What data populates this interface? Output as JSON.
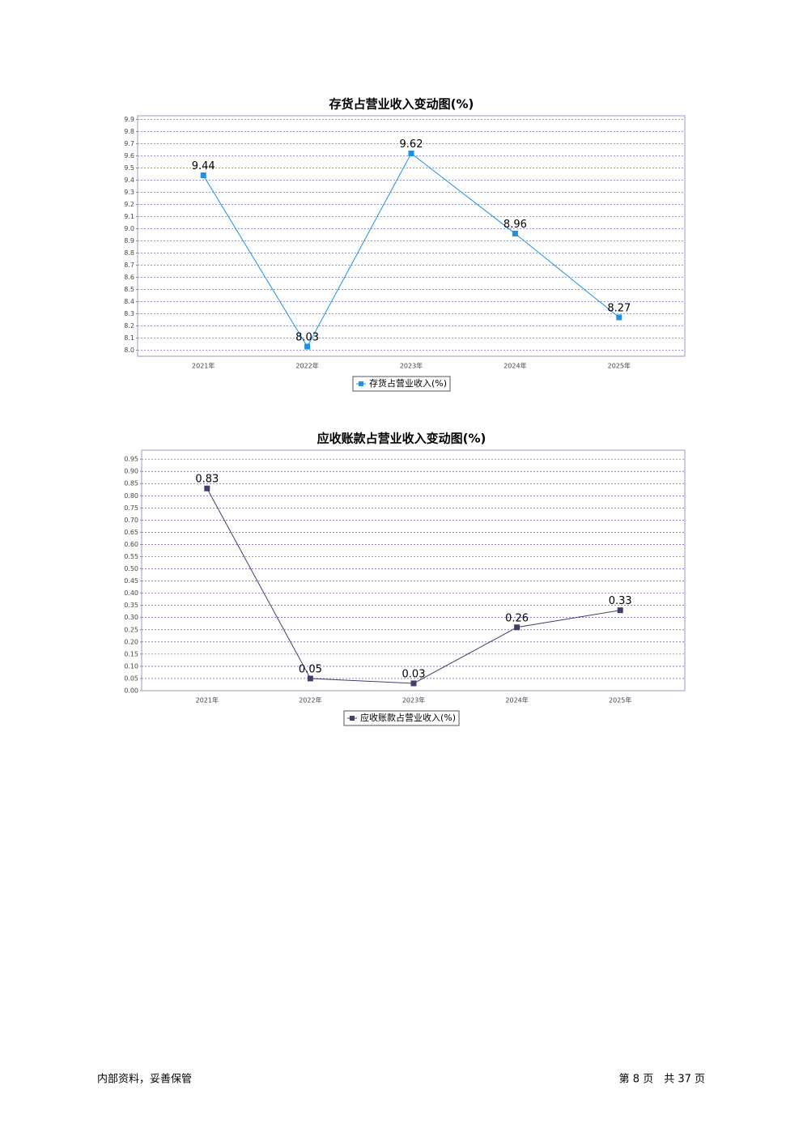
{
  "chart_data": [
    {
      "type": "line",
      "title": "存货占营业收入变动图(%)",
      "categories": [
        "2021年",
        "2022年",
        "2023年",
        "2024年",
        "2025年"
      ],
      "series": [
        {
          "name": "存货占营业收入(%)",
          "color": "#1e90e6",
          "values": [
            9.44,
            8.03,
            9.62,
            8.96,
            8.27
          ]
        }
      ],
      "ylim": [
        7.95,
        9.93
      ],
      "yticks": [
        {
          "value": 8,
          "label": "8.0"
        },
        8.1,
        8.2,
        8.3,
        8.4,
        8.5,
        8.6,
        8.7,
        8.8,
        8.9,
        {
          "value": 9,
          "label": "9.0"
        },
        9.1,
        9.2,
        9.3,
        9.4,
        9.5,
        9.6,
        9.7,
        9.8,
        9.9
      ],
      "grid": true
    },
    {
      "type": "line",
      "title": "应收账款占营业收入变动图(%)",
      "categories": [
        "2021年",
        "2022年",
        "2023年",
        "2024年",
        "2025年"
      ],
      "series": [
        {
          "name": "应收账款占营业收入(%)",
          "color": "#3f3f6a",
          "values": [
            0.83,
            0.05,
            0.03,
            0.26,
            0.33
          ]
        }
      ],
      "ylim": [
        0,
        0.987
      ],
      "yticks": [
        {
          "value": 0,
          "label": "0.00"
        },
        0.05,
        {
          "value": 0.1,
          "label": "0.10"
        },
        0.15,
        {
          "value": 0.2,
          "label": "0.20"
        },
        0.25,
        {
          "value": 0.3,
          "label": "0.30"
        },
        0.35,
        {
          "value": 0.4,
          "label": "0.40"
        },
        0.45,
        {
          "value": 0.5,
          "label": "0.50"
        },
        0.55,
        {
          "value": 0.6,
          "label": "0.60"
        },
        0.65,
        {
          "value": 0.7,
          "label": "0.70"
        },
        0.75,
        {
          "value": 0.8,
          "label": "0.80"
        },
        0.85,
        {
          "value": 0.9,
          "label": "0.90"
        },
        0.95
      ],
      "grid": true
    }
  ],
  "footer": {
    "note": "内部资料，妥善保管",
    "page": "第 8 页　共 37 页"
  }
}
